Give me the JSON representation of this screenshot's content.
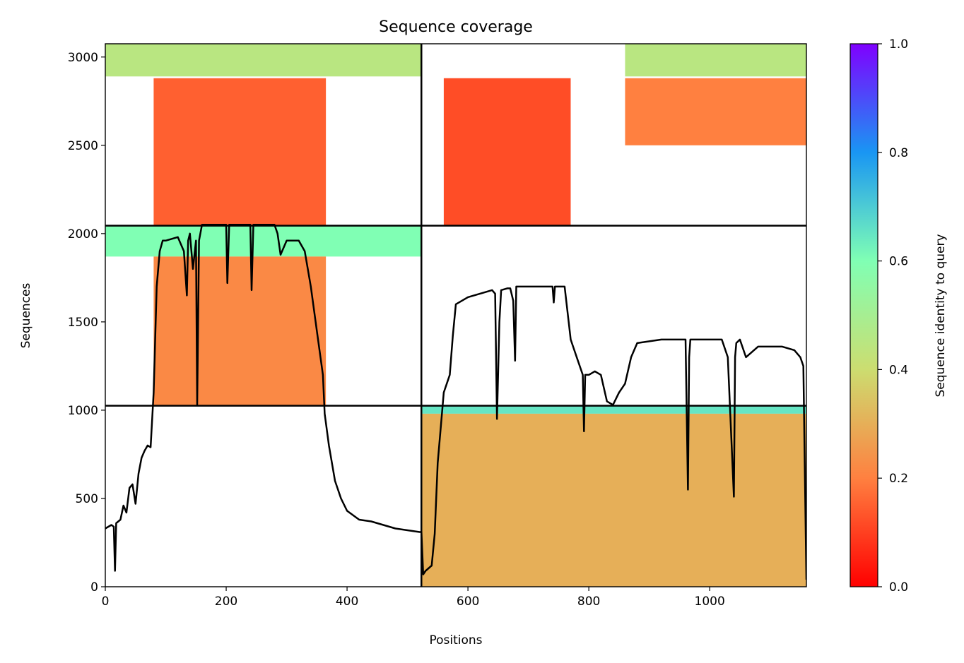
{
  "chart_data": {
    "type": "heatmap",
    "title": "Sequence coverage",
    "xlabel": "Positions",
    "ylabel": "Sequences",
    "xlim": [
      0,
      1160
    ],
    "ylim": [
      0,
      3075
    ],
    "x_ticks": [
      0,
      200,
      400,
      600,
      800,
      1000
    ],
    "y_ticks": [
      0,
      500,
      1000,
      1500,
      2000,
      2500,
      3000
    ],
    "grid": false,
    "chain_boundaries": {
      "x": [
        523
      ],
      "y": [
        1025,
        2045
      ]
    },
    "colorbar": {
      "label": "Sequence identity to query",
      "colormap": "rainbow_r",
      "range": [
        0,
        1
      ],
      "ticks": [
        0.0,
        0.2,
        0.4,
        0.6,
        0.8,
        1.0
      ],
      "tick_labels": [
        "0.0",
        "0.2",
        "0.4",
        "0.6",
        "0.8",
        "1.0"
      ],
      "colors": [
        "#ff0000",
        "#ff8040",
        "#ccdd70",
        "#80ffb4",
        "#1996f3",
        "#7f00ff"
      ]
    },
    "coverage_blocks": [
      {
        "x_range": [
          0,
          523
        ],
        "y_range": [
          2890,
          3075
        ],
        "identity": 0.45
      },
      {
        "x_range": [
          80,
          365
        ],
        "y_range": [
          2045,
          2880
        ],
        "identity": 0.15
      },
      {
        "x_range": [
          0,
          523
        ],
        "y_range": [
          1870,
          2045
        ],
        "identity": 0.6
      },
      {
        "x_range": [
          80,
          365
        ],
        "y_range": [
          1025,
          1870
        ],
        "identity": 0.22
      },
      {
        "x_range": [
          860,
          1160
        ],
        "y_range": [
          2890,
          3075
        ],
        "identity": 0.45
      },
      {
        "x_range": [
          560,
          770
        ],
        "y_range": [
          2045,
          2880
        ],
        "identity": 0.12
      },
      {
        "x_range": [
          860,
          1160
        ],
        "y_range": [
          2500,
          2880
        ],
        "identity": 0.2
      },
      {
        "x_range": [
          523,
          1160
        ],
        "y_range": [
          980,
          1025
        ],
        "identity": 0.65
      },
      {
        "x_range": [
          523,
          1160
        ],
        "y_range": [
          0,
          980
        ],
        "identity": 0.3
      }
    ],
    "series": [
      {
        "type": "line",
        "x": [
          0,
          10,
          14,
          16,
          18,
          25,
          30,
          35,
          40,
          45,
          50,
          55,
          60,
          65,
          70,
          75,
          80,
          85,
          90,
          95,
          100,
          120,
          130,
          135,
          137,
          140,
          145,
          150,
          152,
          155,
          160,
          165,
          180,
          200,
          202,
          205,
          220,
          240,
          242,
          245,
          260,
          280,
          285,
          290,
          300,
          320,
          330,
          340,
          350,
          360,
          363,
          370,
          380,
          390,
          400,
          420,
          440,
          460,
          480,
          500,
          520,
          523,
          526,
          530,
          540,
          545,
          550,
          555,
          560,
          570,
          575,
          580,
          600,
          620,
          640,
          645,
          648,
          652,
          655,
          665,
          670,
          675,
          678,
          680,
          685,
          700,
          720,
          740,
          742,
          744,
          760,
          770,
          780,
          790,
          792,
          794,
          800,
          810,
          820,
          830,
          840,
          850,
          860,
          870,
          880,
          900,
          920,
          950,
          960,
          964,
          966,
          968,
          975,
          1000,
          1020,
          1030,
          1040,
          1042,
          1044,
          1050,
          1060,
          1080,
          1100,
          1120,
          1140,
          1150,
          1155,
          1160
        ],
        "y": [
          330,
          350,
          340,
          90,
          360,
          380,
          460,
          420,
          560,
          580,
          470,
          640,
          730,
          770,
          800,
          790,
          1100,
          1700,
          1900,
          1960,
          1960,
          1980,
          1900,
          1650,
          1960,
          2000,
          1800,
          1960,
          1030,
          1960,
          2050,
          2050,
          2050,
          2050,
          1720,
          2050,
          2050,
          2050,
          1680,
          2050,
          2050,
          2050,
          2000,
          1880,
          1960,
          1960,
          1900,
          1700,
          1450,
          1200,
          980,
          800,
          600,
          500,
          430,
          380,
          370,
          350,
          330,
          320,
          310,
          310,
          70,
          90,
          120,
          300,
          700,
          900,
          1100,
          1200,
          1420,
          1600,
          1640,
          1660,
          1680,
          1660,
          950,
          1500,
          1680,
          1690,
          1690,
          1620,
          1280,
          1700,
          1700,
          1700,
          1700,
          1700,
          1610,
          1700,
          1700,
          1400,
          1300,
          1200,
          880,
          1200,
          1200,
          1220,
          1200,
          1050,
          1030,
          1100,
          1150,
          1300,
          1380,
          1390,
          1400,
          1400,
          1400,
          550,
          1300,
          1400,
          1400,
          1400,
          1400,
          1300,
          510,
          1300,
          1380,
          1400,
          1300,
          1360,
          1360,
          1360,
          1340,
          1300,
          1250,
          40
        ]
      }
    ]
  }
}
